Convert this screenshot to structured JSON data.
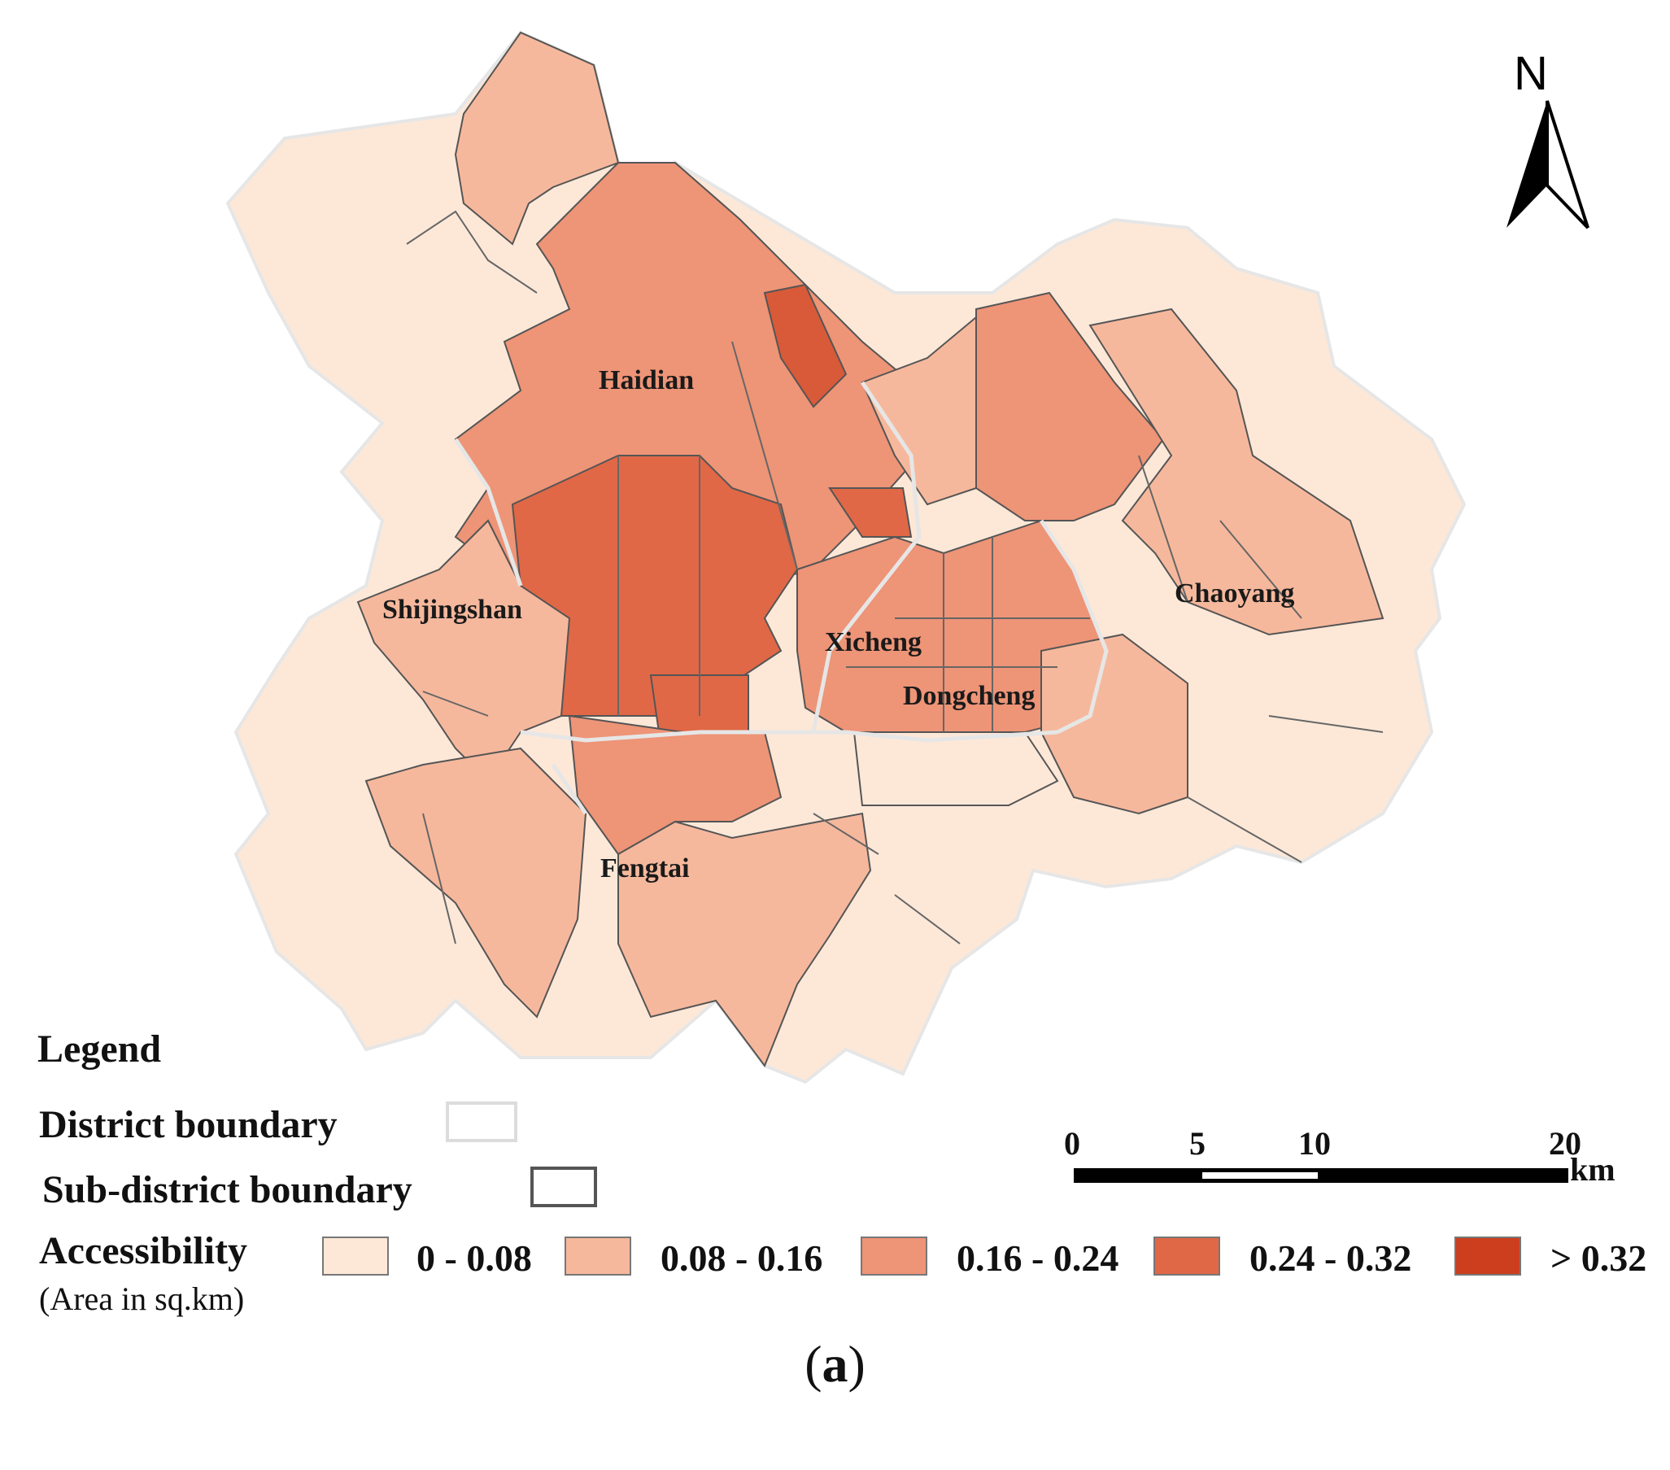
{
  "map": {
    "districts": [
      {
        "name": "Haidian"
      },
      {
        "name": "Shijingshan"
      },
      {
        "name": "Xicheng"
      },
      {
        "name": "Dongcheng"
      },
      {
        "name": "Chaoyang"
      },
      {
        "name": "Fengtai"
      }
    ],
    "north_arrow": "N",
    "colors": {
      "class_1": "#fde8d8",
      "class_2": "#f6b89c",
      "class_3": "#ee9477",
      "class_4": "#e06846",
      "class_5": "#cc3e1e",
      "district_boundary": "#e6e6e6",
      "subdistrict_boundary": "#555555"
    }
  },
  "legend": {
    "title": "Legend",
    "district_boundary_label": "District boundary",
    "subdistrict_boundary_label": "Sub-district boundary",
    "accessibility_label": "Accessibility",
    "area_note": "(Area in sq.km)",
    "classes": [
      {
        "label": "0 - 0.08",
        "color": "#fde8d8"
      },
      {
        "label": "0.08 - 0.16",
        "color": "#f6b89c"
      },
      {
        "label": "0.16 - 0.24",
        "color": "#ee9477"
      },
      {
        "label": "0.24 - 0.32",
        "color": "#e06846"
      },
      {
        "label": "> 0.32",
        "color": "#cc3e1e"
      }
    ]
  },
  "scale_bar": {
    "ticks": [
      "0",
      "5",
      "10",
      "20"
    ],
    "unit": "km"
  },
  "caption": {
    "open": "(",
    "letter": "a",
    "close": ")"
  }
}
